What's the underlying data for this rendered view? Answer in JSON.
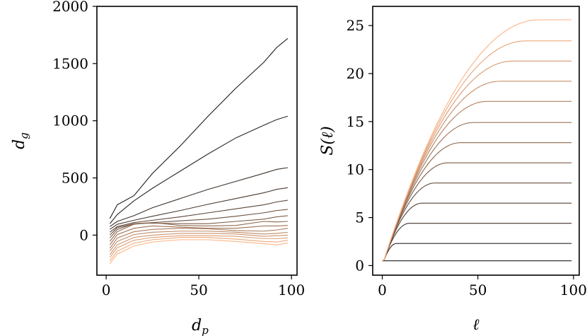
{
  "chart_data": [
    {
      "type": "line",
      "xlabel": "d_p",
      "ylabel": "d_g",
      "xlim": [
        -5,
        103
      ],
      "ylim": [
        -350,
        2000
      ],
      "xticks": [
        0,
        50,
        100
      ],
      "yticks": [
        0,
        500,
        1000,
        1500,
        2000
      ],
      "xtick_labels": [
        "0",
        "50",
        "100"
      ],
      "ytick_labels": [
        "0",
        "500",
        "1000",
        "1500",
        "2000"
      ],
      "color_gradient": [
        "#1c1c1c",
        "#fdb382"
      ],
      "series": [
        {
          "x": [
            2,
            6,
            15,
            25,
            40,
            55,
            70,
            85,
            92,
            98
          ],
          "y": [
            145,
            265,
            345,
            540,
            780,
            1040,
            1285,
            1510,
            1640,
            1720
          ]
        },
        {
          "x": [
            2,
            6,
            15,
            25,
            40,
            55,
            70,
            85,
            92,
            98
          ],
          "y": [
            100,
            180,
            300,
            410,
            560,
            710,
            850,
            960,
            1010,
            1040
          ]
        },
        {
          "x": [
            2,
            6,
            15,
            25,
            40,
            55,
            70,
            85,
            92,
            98
          ],
          "y": [
            75,
            120,
            170,
            240,
            320,
            400,
            470,
            540,
            575,
            590
          ]
        },
        {
          "x": [
            2,
            6,
            15,
            25,
            40,
            55,
            70,
            85,
            92,
            98
          ],
          "y": [
            50,
            95,
            130,
            165,
            215,
            270,
            320,
            370,
            400,
            415
          ]
        },
        {
          "x": [
            2,
            6,
            15,
            25,
            40,
            55,
            70,
            85,
            92,
            98
          ],
          "y": [
            25,
            75,
            110,
            130,
            160,
            195,
            230,
            265,
            290,
            305
          ]
        },
        {
          "x": [
            2,
            6,
            15,
            25,
            40,
            55,
            70,
            85,
            92,
            98
          ],
          "y": [
            0,
            65,
            100,
            110,
            125,
            140,
            165,
            195,
            215,
            225
          ]
        },
        {
          "x": [
            2,
            6,
            15,
            25,
            40,
            55,
            70,
            85,
            92,
            98
          ],
          "y": [
            -25,
            50,
            100,
            105,
            100,
            100,
            120,
            140,
            160,
            170
          ]
        },
        {
          "x": [
            2,
            6,
            15,
            25,
            40,
            55,
            70,
            85,
            92,
            98
          ],
          "y": [
            -55,
            30,
            95,
            110,
            85,
            80,
            85,
            120,
            115,
            120
          ]
        },
        {
          "x": [
            2,
            6,
            15,
            25,
            40,
            55,
            70,
            85,
            92,
            98
          ],
          "y": [
            -85,
            5,
            60,
            80,
            70,
            60,
            60,
            80,
            80,
            85
          ]
        },
        {
          "x": [
            2,
            6,
            15,
            25,
            40,
            55,
            70,
            85,
            92,
            98
          ],
          "y": [
            -115,
            -25,
            30,
            50,
            60,
            55,
            40,
            35,
            45,
            60
          ]
        },
        {
          "x": [
            2,
            6,
            15,
            25,
            40,
            55,
            70,
            85,
            92,
            98
          ],
          "y": [
            -140,
            -55,
            5,
            25,
            35,
            35,
            25,
            10,
            15,
            25
          ]
        },
        {
          "x": [
            2,
            6,
            15,
            25,
            40,
            55,
            70,
            85,
            92,
            98
          ],
          "y": [
            -170,
            -85,
            -20,
            0,
            15,
            15,
            10,
            -10,
            -5,
            0
          ]
        },
        {
          "x": [
            2,
            6,
            15,
            25,
            40,
            55,
            70,
            85,
            92,
            98
          ],
          "y": [
            -195,
            -110,
            -45,
            -20,
            -5,
            -5,
            -10,
            -30,
            -30,
            -25
          ]
        },
        {
          "x": [
            2,
            6,
            15,
            25,
            40,
            55,
            70,
            85,
            92,
            98
          ],
          "y": [
            -225,
            -140,
            -70,
            -40,
            -20,
            -20,
            -35,
            -55,
            -60,
            -45
          ]
        },
        {
          "x": [
            2,
            6,
            15,
            25,
            40,
            55,
            70,
            85,
            92,
            98
          ],
          "y": [
            -250,
            -165,
            -95,
            -60,
            -40,
            -40,
            -55,
            -75,
            -85,
            -70
          ]
        }
      ]
    },
    {
      "type": "line",
      "xlabel": "ℓ",
      "ylabel": "S(ℓ)",
      "xlim": [
        -5,
        103
      ],
      "ylim": [
        -1,
        27
      ],
      "xticks": [
        0,
        50,
        100
      ],
      "yticks": [
        0,
        5,
        10,
        15,
        20,
        25
      ],
      "xtick_labels": [
        "0",
        "50",
        "100"
      ],
      "ytick_labels": [
        "0",
        "5",
        "10",
        "15",
        "20",
        "25"
      ],
      "color_gradient": [
        "#1c1c1c",
        "#fdb382"
      ],
      "saturation_values": [
        0.5,
        2.3,
        4.4,
        6.5,
        8.6,
        10.7,
        12.8,
        14.9,
        17.1,
        19.2,
        21.3,
        23.4,
        25.6
      ]
    }
  ]
}
